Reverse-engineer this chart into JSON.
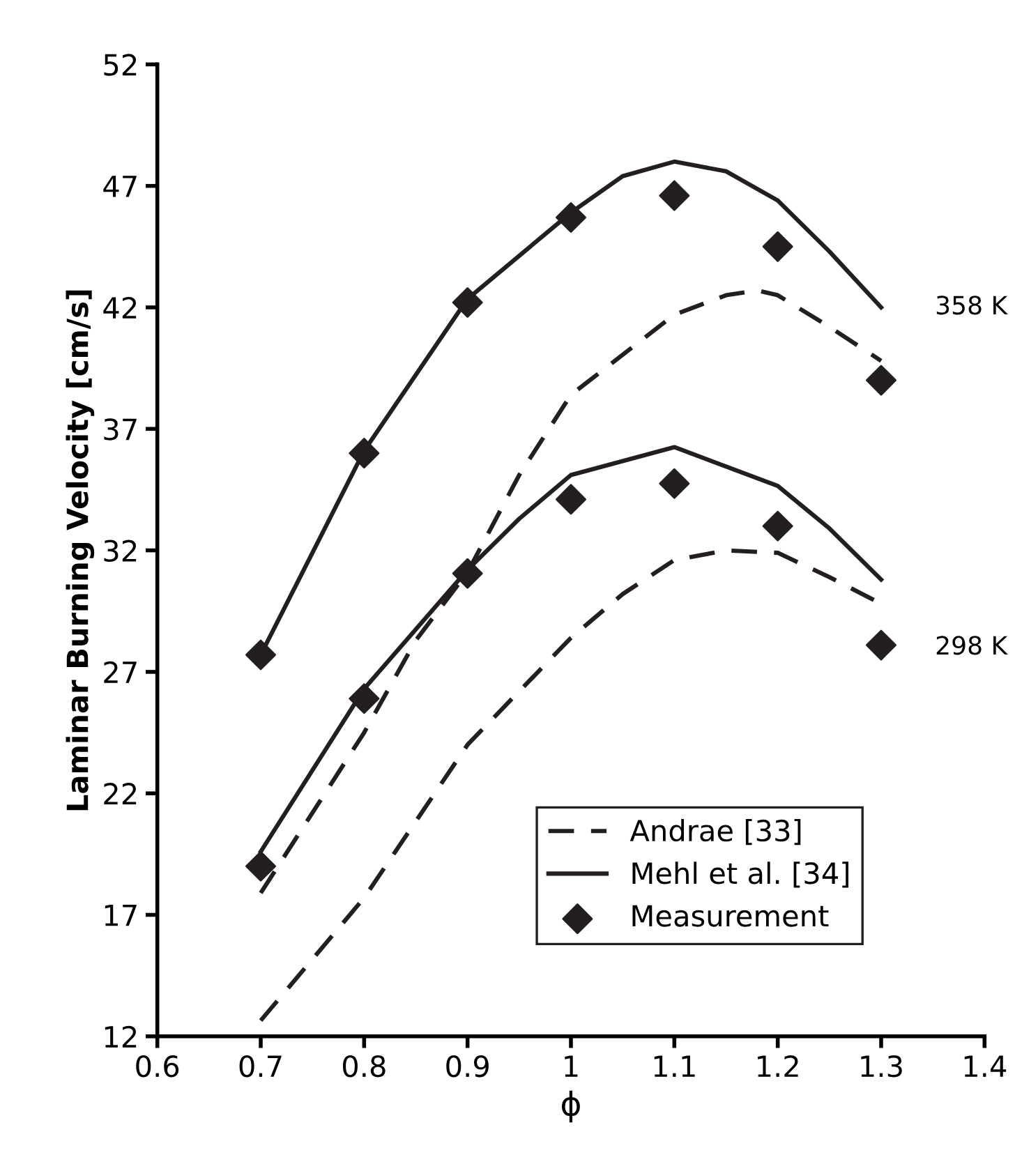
{
  "chart_data": {
    "type": "line",
    "xlabel": "ϕ",
    "ylabel": "Laminar Burning Velocity [cm/s]",
    "xlim": [
      0.6,
      1.4
    ],
    "xticks": [
      0.6,
      0.7,
      0.8,
      0.9,
      1,
      1.1,
      1.2,
      1.3,
      1.4
    ],
    "ylim": [
      12,
      52
    ],
    "yticks": [
      12,
      17,
      22,
      27,
      32,
      37,
      42,
      47,
      52
    ],
    "grid": false,
    "legend": "bottom right",
    "annotations": [
      "358 K",
      "298 K"
    ],
    "series": [
      {
        "name": "Andrae [33]",
        "color": "#231f20",
        "line_style": "dashed",
        "marker": "none",
        "x": [
          0.7,
          0.8,
          0.85,
          0.9,
          0.95,
          1.0,
          1.1,
          1.15,
          1.18,
          1.2,
          1.25,
          1.3
        ],
        "values": [
          17.9,
          24.5,
          28.3,
          31.1,
          35.1,
          38.4,
          41.7,
          42.5,
          42.7,
          42.5,
          41.2,
          39.8
        ]
      },
      {
        "color": "#231f20",
        "line_style": "dashed",
        "marker": "none",
        "x": [
          0.7,
          0.8,
          0.9,
          1.0,
          1.05,
          1.1,
          1.15,
          1.2,
          1.25,
          1.3
        ],
        "values": [
          12.65,
          17.7,
          24.0,
          28.4,
          30.2,
          31.6,
          32.0,
          31.9,
          30.9,
          29.8
        ]
      },
      {
        "name": "Mehl et al. [34]",
        "color": "#231f20",
        "line_style": "solid",
        "marker": "none",
        "x": [
          0.7,
          0.8,
          0.9,
          1.0,
          1.05,
          1.1,
          1.15,
          1.2,
          1.25,
          1.3
        ],
        "values": [
          27.7,
          36.1,
          42.35,
          45.9,
          47.4,
          48.0,
          47.6,
          46.4,
          44.3,
          42.0
        ]
      },
      {
        "color": "#231f20",
        "line_style": "solid",
        "marker": "none",
        "x": [
          0.7,
          0.8,
          0.9,
          0.95,
          1.0,
          1.1,
          1.2,
          1.25,
          1.3
        ],
        "values": [
          19.6,
          26.3,
          31.2,
          33.3,
          35.1,
          36.25,
          34.65,
          32.9,
          30.8
        ]
      },
      {
        "name": "Measurement",
        "type": "scatter",
        "color": "#231f20",
        "marker": "diamond",
        "x": [
          0.7,
          0.8,
          0.9,
          1.0,
          1.1,
          1.2,
          1.3
        ],
        "values": [
          27.7,
          36.0,
          42.2,
          45.7,
          46.6,
          44.5,
          39.0
        ]
      },
      {
        "type": "scatter",
        "color": "#231f20",
        "marker": "diamond",
        "x": [
          0.7,
          0.8,
          0.9,
          1.0,
          1.1,
          1.2,
          1.3
        ],
        "values": [
          19.0,
          25.9,
          31.05,
          34.1,
          34.75,
          33.0,
          28.1
        ]
      }
    ]
  }
}
